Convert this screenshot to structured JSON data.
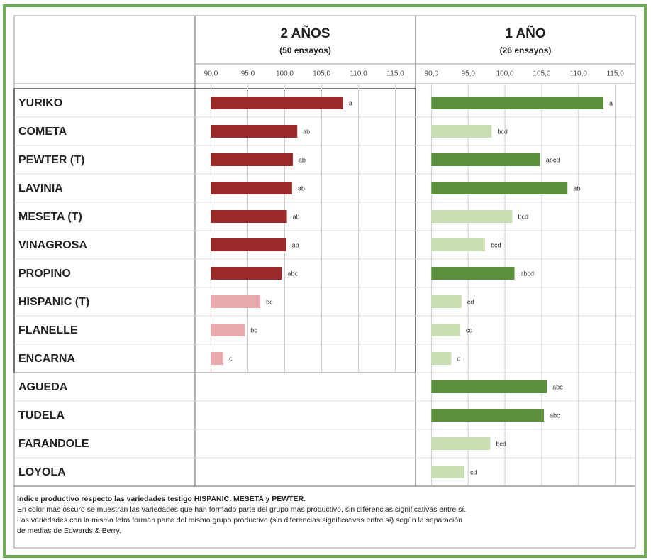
{
  "chart_data": [
    {
      "type": "bar",
      "orientation": "horizontal",
      "title": "2 AÑOS",
      "subtitle": "(50 ensayos)",
      "categories": [
        "YURIKO",
        "COMETA",
        "PEWTER (T)",
        "LAVINIA",
        "MESETA (T)",
        "VINAGROSA",
        "PROPINO",
        "HISPANIC (T)",
        "FLANELLE",
        "ENCARNA",
        "AGUEDA",
        "TUDELA",
        "FARANDOLE",
        "LOYOLA"
      ],
      "values": [
        107.9,
        101.7,
        101.1,
        101.0,
        100.3,
        100.2,
        99.6,
        96.7,
        94.6,
        91.7,
        null,
        null,
        null,
        null
      ],
      "colors": [
        "#9b2b2b",
        "#9b2b2b",
        "#9b2b2b",
        "#9b2b2b",
        "#9b2b2b",
        "#9b2b2b",
        "#9b2b2b",
        "#e8a9ad",
        "#e8a9ad",
        "#e8a9ad",
        null,
        null,
        null,
        null
      ],
      "annotations": [
        "a",
        "ab",
        "ab",
        "ab",
        "ab",
        "ab",
        "abc",
        "bc",
        "bc",
        "c",
        null,
        null,
        null,
        null
      ],
      "xlim": [
        89,
        116
      ],
      "xticks": [
        {
          "value": 90,
          "label": "90,0"
        },
        {
          "value": 95,
          "label": "95,0"
        },
        {
          "value": 100,
          "label": "100,0"
        },
        {
          "value": 105,
          "label": "105,0"
        },
        {
          "value": 110,
          "label": "110,0"
        },
        {
          "value": 115,
          "label": "115,0"
        }
      ],
      "grid": true
    },
    {
      "type": "bar",
      "orientation": "horizontal",
      "title": "1 AÑO",
      "subtitle": "(26 ensayos)",
      "values": [
        113.4,
        98.2,
        104.8,
        108.5,
        101.0,
        97.3,
        101.3,
        94.1,
        93.9,
        92.7,
        105.7,
        105.3,
        98.0,
        94.5
      ],
      "colors": [
        "#5a8f3c",
        "#c9dfb3",
        "#5a8f3c",
        "#5a8f3c",
        "#c9dfb3",
        "#c9dfb3",
        "#5a8f3c",
        "#c9dfb3",
        "#c9dfb3",
        "#c9dfb3",
        "#5a8f3c",
        "#5a8f3c",
        "#c9dfb3",
        "#c9dfb3"
      ],
      "annotations": [
        "a",
        "bcd",
        "abcd",
        "ab",
        "bcd",
        "bcd",
        "abcd",
        "cd",
        "cd",
        "d",
        "abc",
        "abc",
        "bcd",
        "cd"
      ],
      "xlim": [
        89,
        116
      ],
      "xticks": [
        {
          "value": 90,
          "label": "90,0"
        },
        {
          "value": 95,
          "label": "95,0"
        },
        {
          "value": 100,
          "label": "100,0"
        },
        {
          "value": 105,
          "label": "105,0"
        },
        {
          "value": 110,
          "label": "110,0"
        },
        {
          "value": 115,
          "label": "115,0"
        }
      ],
      "grid": true
    }
  ],
  "notes": [
    "Indice productivo respecto las variedades testigo HISPANIC, MESETA y PEWTER.",
    "En color más oscuro se muestran las variedades que han formado parte del grupo más productivo, sin diferencias significativas entre sí.",
    "Las variedades con la misma letra forman parte del mismo grupo productivo (sin diferencias significativas entre sí) según la separación",
    "de medias de Edwards & Berry."
  ]
}
